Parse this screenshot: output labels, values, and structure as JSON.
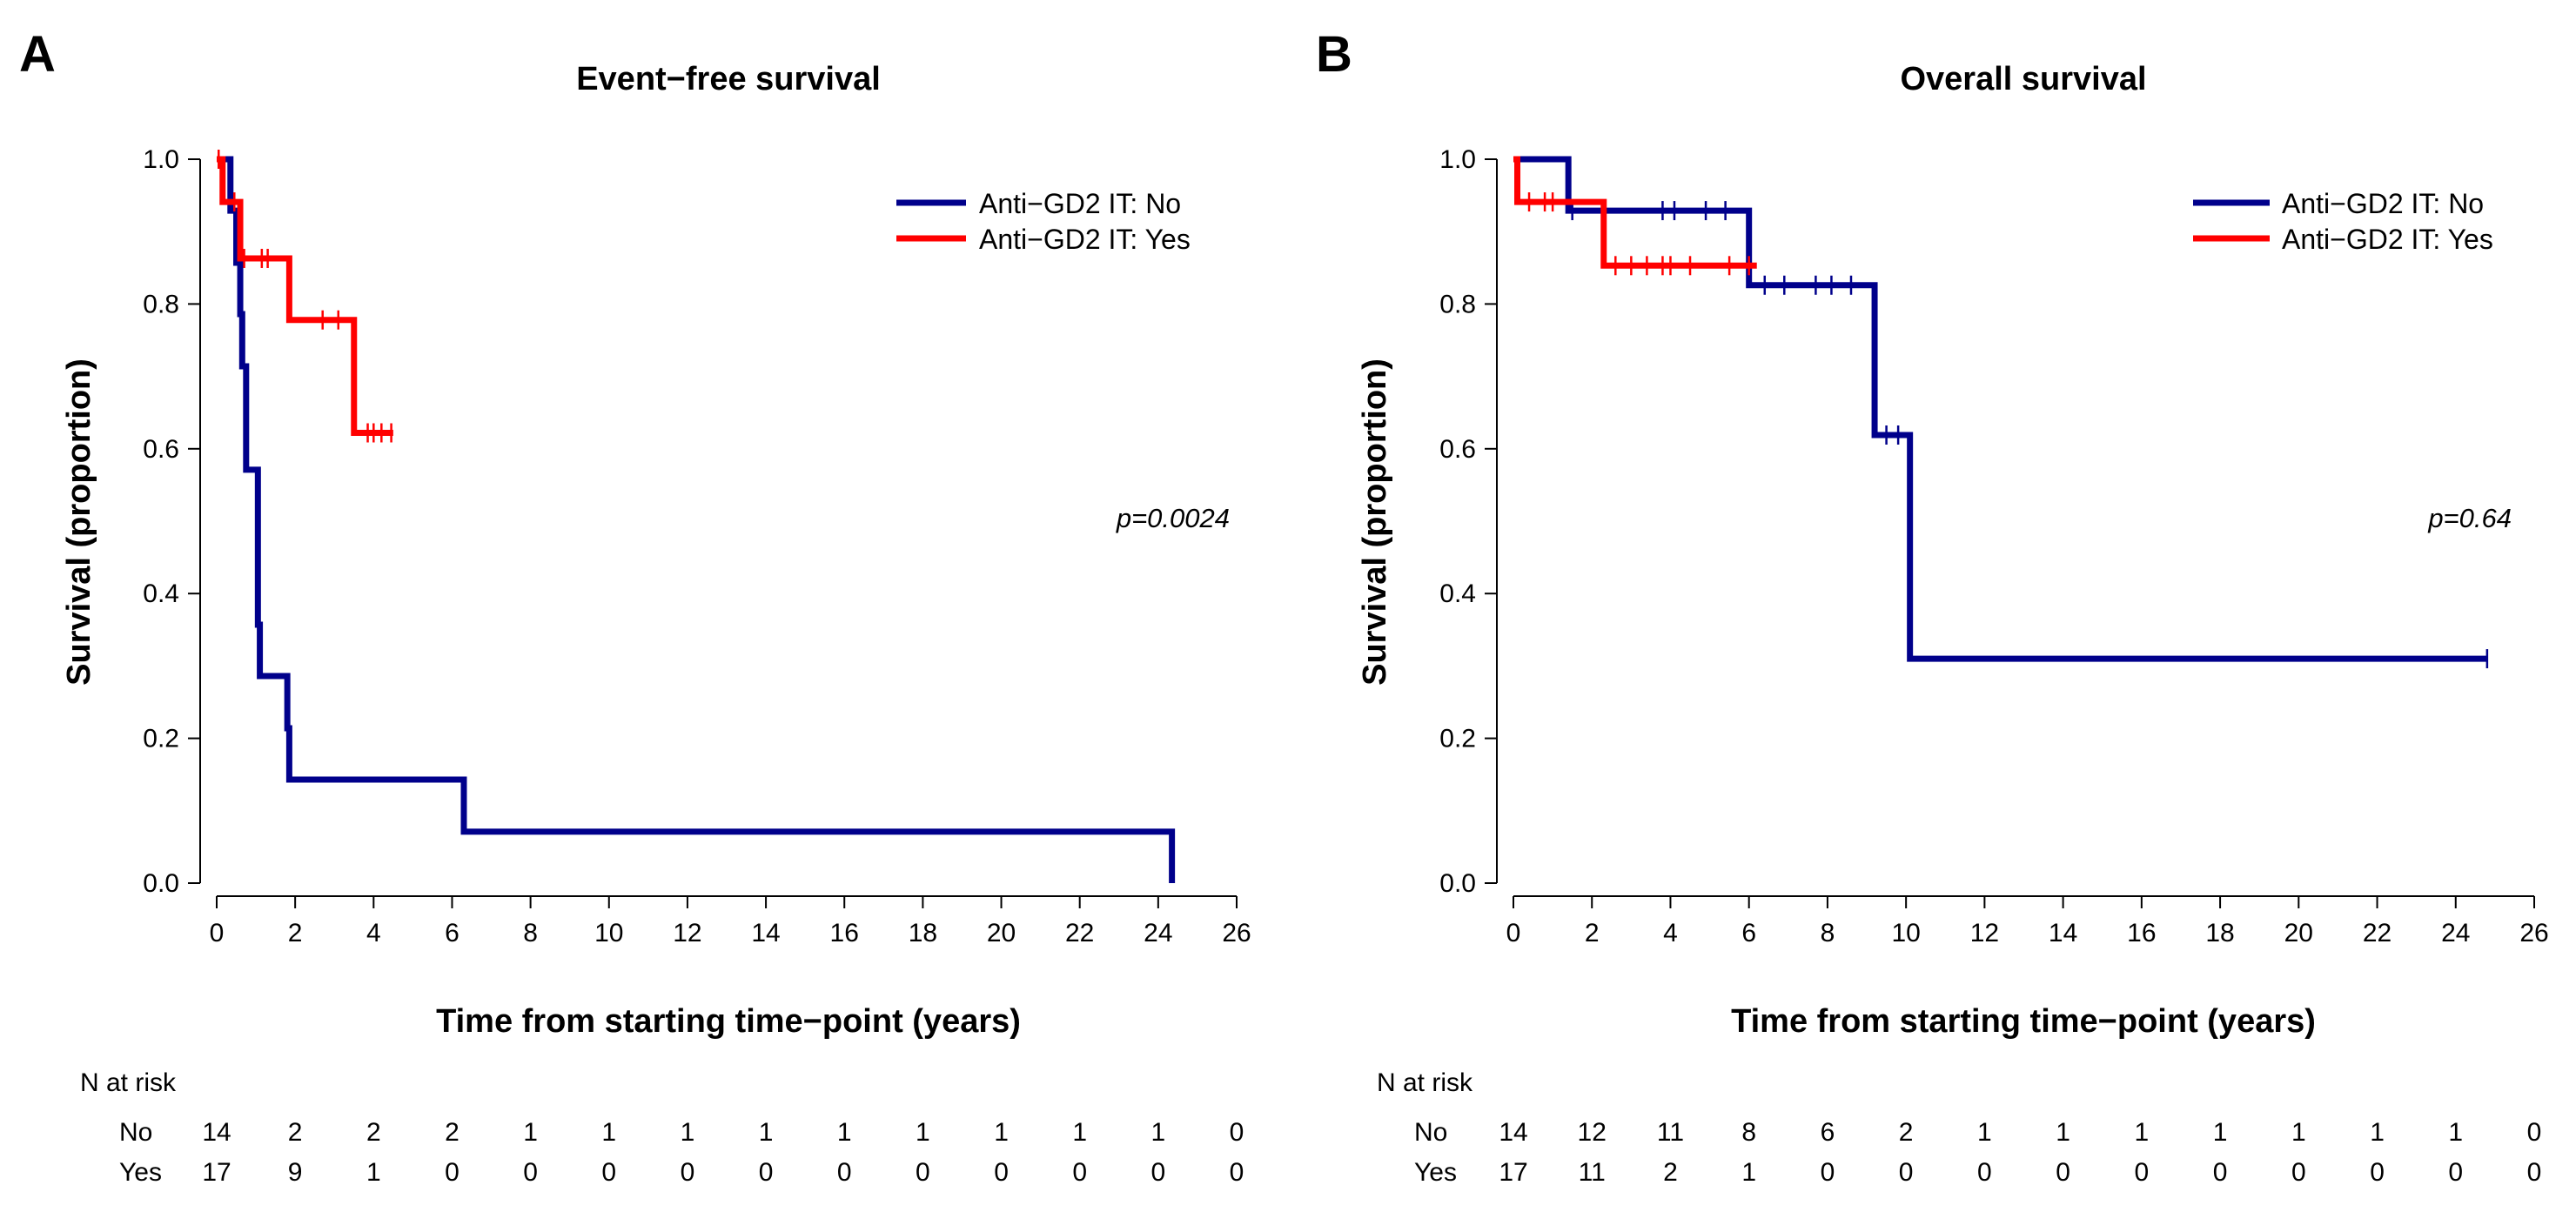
{
  "chart_data": [
    {
      "type": "line",
      "subtype": "kaplan-meier",
      "panel_label": "A",
      "title": "Event−free survival",
      "xlabel": "Time from starting time−point (years)",
      "ylabel": "Survival (proportion)",
      "xlim": [
        0,
        26
      ],
      "ylim": [
        0,
        1
      ],
      "x_ticks": [
        "0",
        "2",
        "4",
        "6",
        "8",
        "10",
        "12",
        "14",
        "16",
        "18",
        "20",
        "22",
        "24",
        "26"
      ],
      "y_ticks": [
        "0.0",
        "0.2",
        "0.4",
        "0.6",
        "0.8",
        "1.0"
      ],
      "legend_position": "top-right",
      "p_value": "p=0.0024",
      "series": [
        {
          "name": "Anti−GD2 IT: No",
          "color": "#00008b",
          "steps": [
            [
              0,
              1.0
            ],
            [
              0.35,
              0.929
            ],
            [
              0.5,
              0.857
            ],
            [
              0.6,
              0.786
            ],
            [
              0.65,
              0.714
            ],
            [
              0.75,
              0.571
            ],
            [
              1.05,
              0.357
            ],
            [
              1.1,
              0.286
            ],
            [
              1.8,
              0.214
            ],
            [
              1.85,
              0.143
            ],
            [
              6.3,
              0.071
            ],
            [
              24.35,
              0.0
            ]
          ],
          "end_x": 24.35,
          "censor_x": []
        },
        {
          "name": "Anti−GD2 IT: Yes",
          "color": "#ff0000",
          "steps": [
            [
              0,
              1.0
            ],
            [
              0.15,
              0.941
            ],
            [
              0.6,
              0.863
            ],
            [
              1.85,
              0.778
            ],
            [
              3.5,
              0.622
            ]
          ],
          "end_x": 4.5,
          "censor_x": [
            0.05,
            0.45,
            0.7,
            1.15,
            1.3,
            2.7,
            3.1,
            3.85,
            4.0,
            4.2,
            4.45
          ]
        }
      ],
      "at_risk": {
        "heading": "N at risk",
        "rows": [
          {
            "label": "No",
            "values": [
              "14",
              "2",
              "2",
              "2",
              "1",
              "1",
              "1",
              "1",
              "1",
              "1",
              "1",
              "1",
              "1",
              "0"
            ]
          },
          {
            "label": "Yes",
            "values": [
              "17",
              "9",
              "1",
              "0",
              "0",
              "0",
              "0",
              "0",
              "0",
              "0",
              "0",
              "0",
              "0",
              "0"
            ]
          }
        ]
      }
    },
    {
      "type": "line",
      "subtype": "kaplan-meier",
      "panel_label": "B",
      "title": "Overall survival",
      "xlabel": "Time from starting time−point (years)",
      "ylabel": "Survival (proportion)",
      "xlim": [
        0,
        26
      ],
      "ylim": [
        0,
        1
      ],
      "x_ticks": [
        "0",
        "2",
        "4",
        "6",
        "8",
        "10",
        "12",
        "14",
        "16",
        "18",
        "20",
        "22",
        "24",
        "26"
      ],
      "y_ticks": [
        "0.0",
        "0.2",
        "0.4",
        "0.6",
        "0.8",
        "1.0"
      ],
      "legend_position": "top-right",
      "p_value": "p=0.64",
      "series": [
        {
          "name": "Anti−GD2 IT: No",
          "color": "#00008b",
          "steps": [
            [
              0,
              1.0
            ],
            [
              1.4,
              0.929
            ],
            [
              6.0,
              0.826
            ],
            [
              9.2,
              0.619
            ],
            [
              10.1,
              0.31
            ]
          ],
          "end_x": 24.8,
          "censor_x": [
            1.5,
            3.8,
            4.1,
            4.9,
            5.4,
            6.4,
            6.9,
            7.7,
            8.1,
            8.6,
            9.5,
            9.8,
            24.8
          ]
        },
        {
          "name": "Anti−GD2 IT: Yes",
          "color": "#ff0000",
          "steps": [
            [
              0,
              1.0
            ],
            [
              0.1,
              0.941
            ],
            [
              2.3,
              0.853
            ]
          ],
          "end_x": 6.2,
          "censor_x": [
            0.4,
            0.8,
            1.0,
            2.6,
            3.0,
            3.4,
            3.8,
            4.0,
            4.5,
            5.5,
            6.0
          ]
        }
      ],
      "at_risk": {
        "heading": "N at risk",
        "rows": [
          {
            "label": "No",
            "values": [
              "14",
              "12",
              "11",
              "8",
              "6",
              "2",
              "1",
              "1",
              "1",
              "1",
              "1",
              "1",
              "1",
              "0"
            ]
          },
          {
            "label": "Yes",
            "values": [
              "17",
              "11",
              "2",
              "1",
              "0",
              "0",
              "0",
              "0",
              "0",
              "0",
              "0",
              "0",
              "0",
              "0"
            ]
          }
        ]
      }
    }
  ]
}
